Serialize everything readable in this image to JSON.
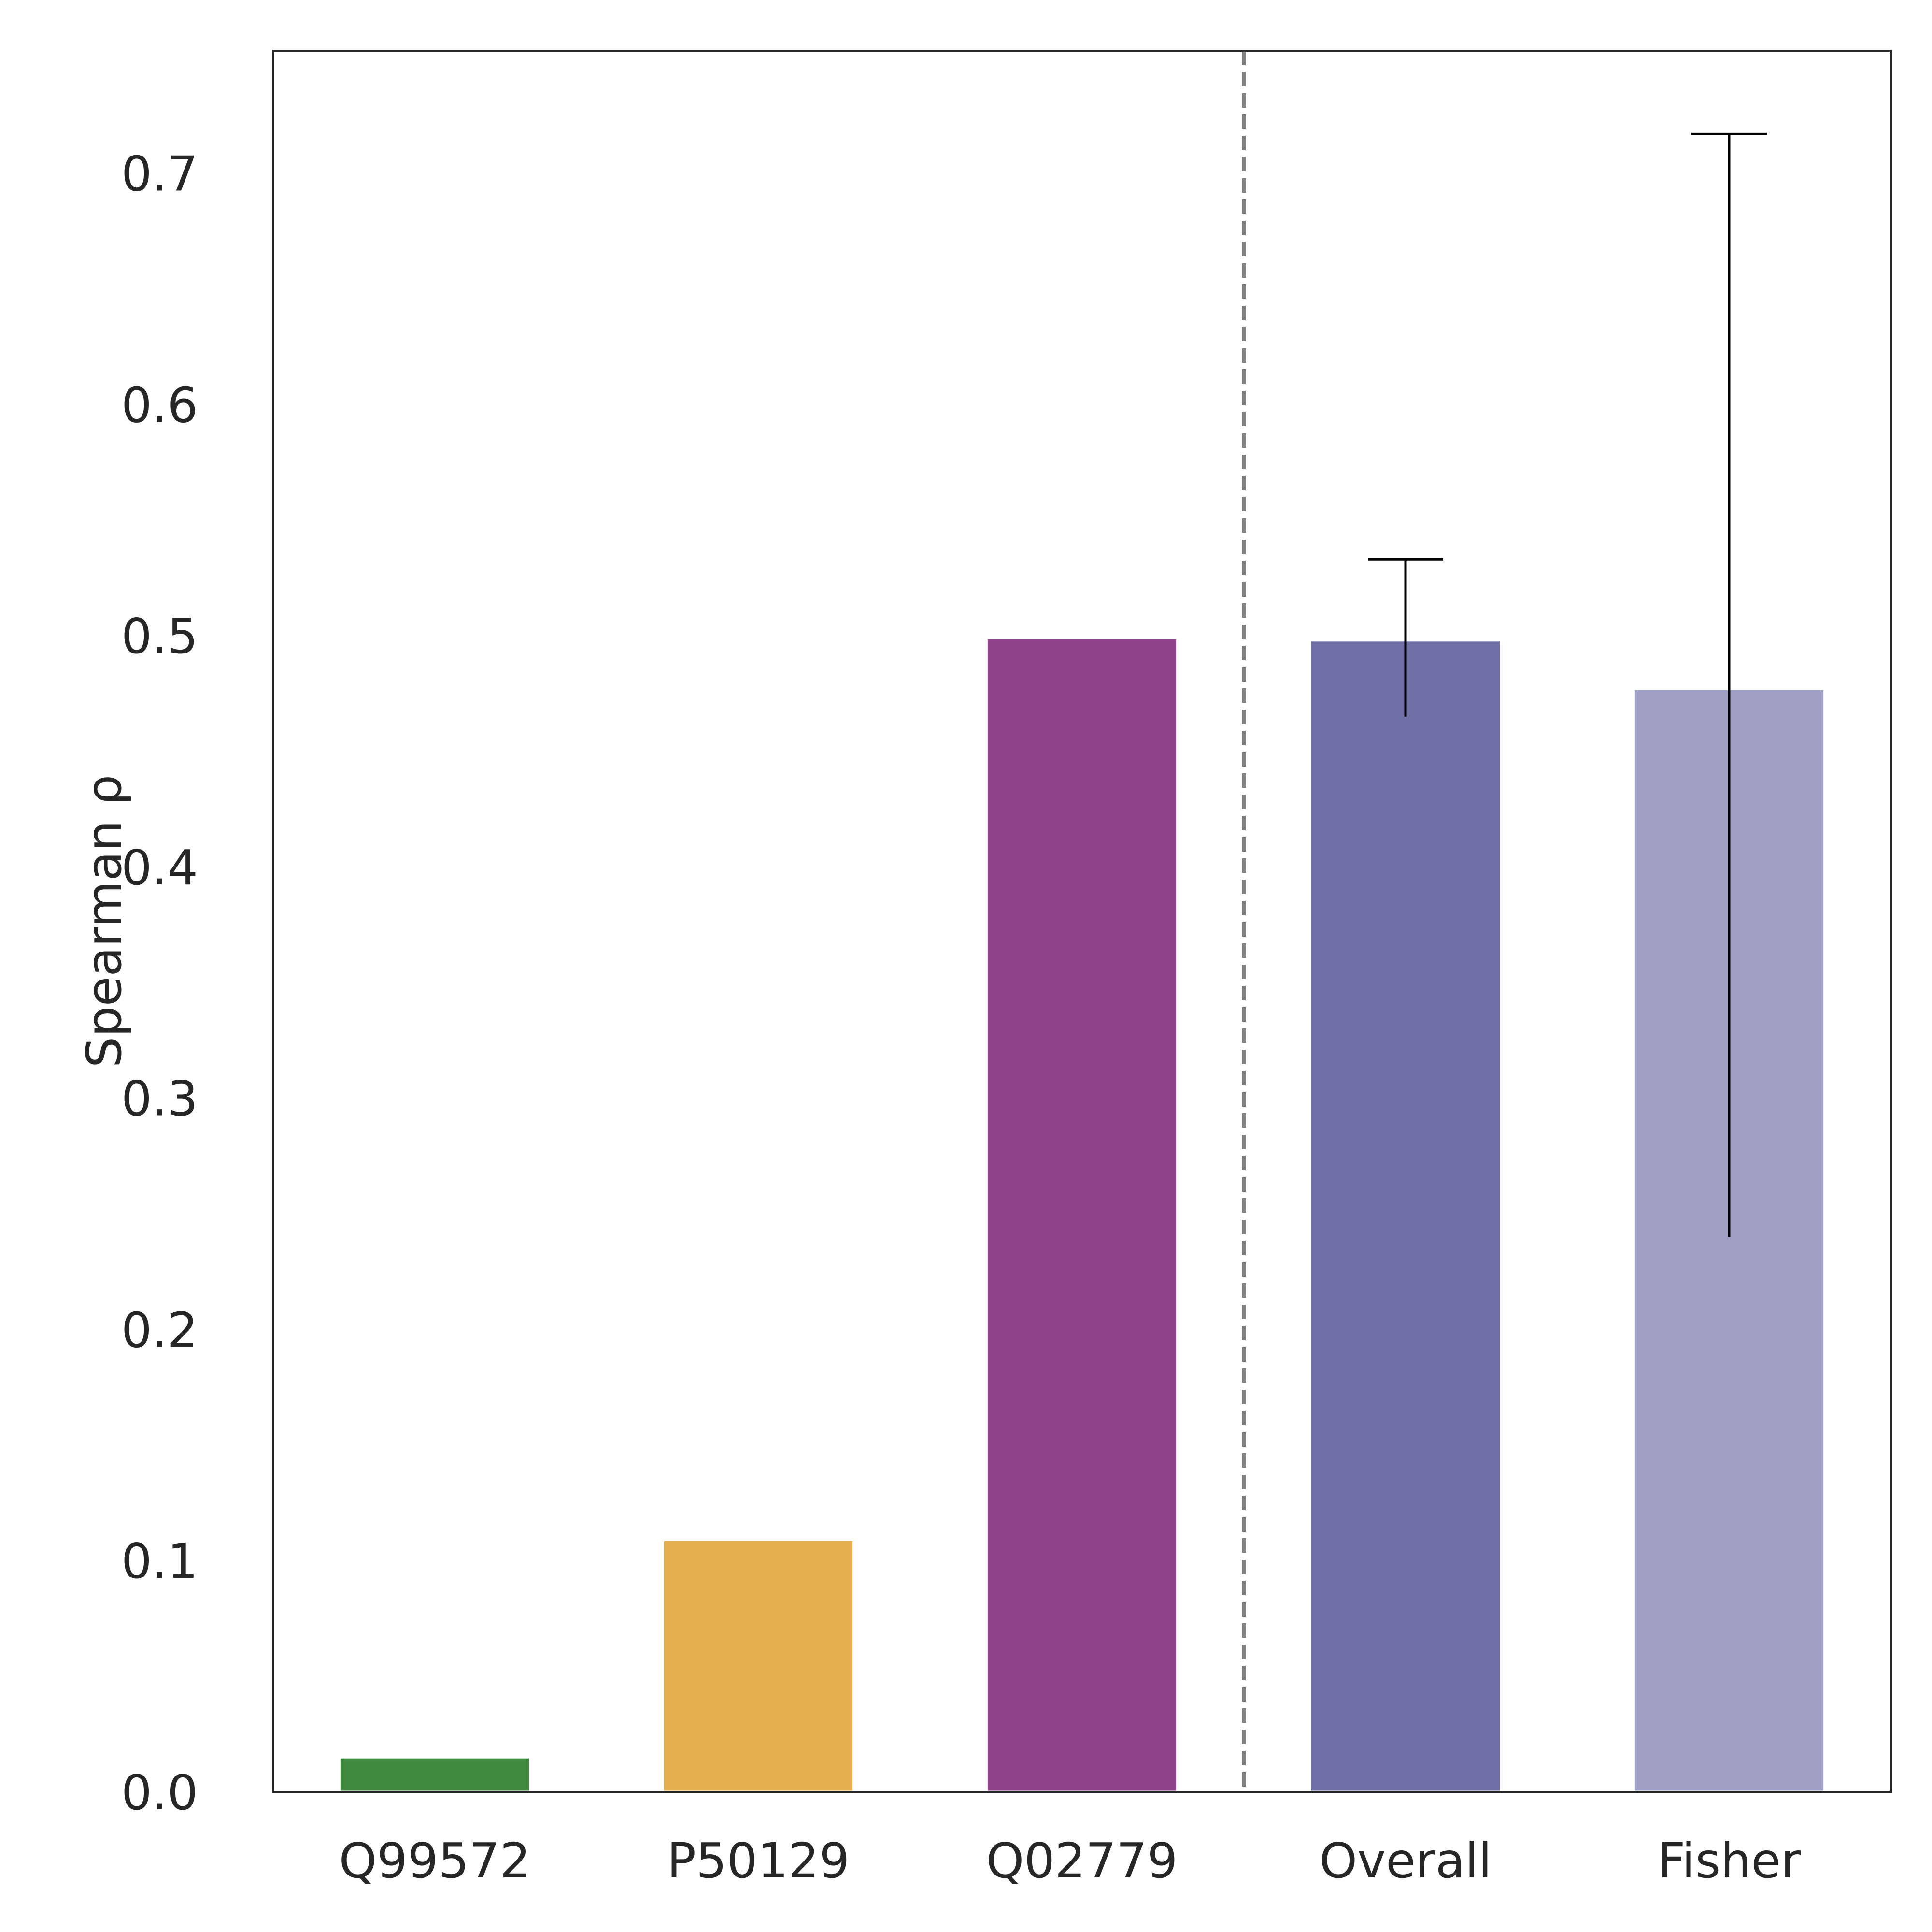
{
  "chart_data": {
    "type": "bar",
    "categories": [
      "Q99572",
      "P50129",
      "Q02779",
      "Overall",
      "Fisher"
    ],
    "values": [
      0.015,
      0.109,
      0.499,
      0.498,
      0.477
    ],
    "error_bars": [
      null,
      null,
      null,
      [
        0.465,
        0.533
      ],
      [
        0.24,
        0.717
      ]
    ],
    "colors": [
      "#3f8a3f",
      "#e4b04f",
      "#8c4189",
      "#7170a6",
      "#a0a0c5"
    ],
    "xlabel": "",
    "ylabel": "Spearman ρ",
    "ylim": [
      0,
      0.753
    ],
    "yticks": [
      0.0,
      0.1,
      0.2,
      0.3,
      0.4,
      0.5,
      0.6,
      0.7
    ],
    "ytick_labels": [
      "0.0",
      "0.1",
      "0.2",
      "0.3",
      "0.4",
      "0.5",
      "0.6",
      "0.7"
    ],
    "separator_after_index": 2,
    "grid": false
  }
}
